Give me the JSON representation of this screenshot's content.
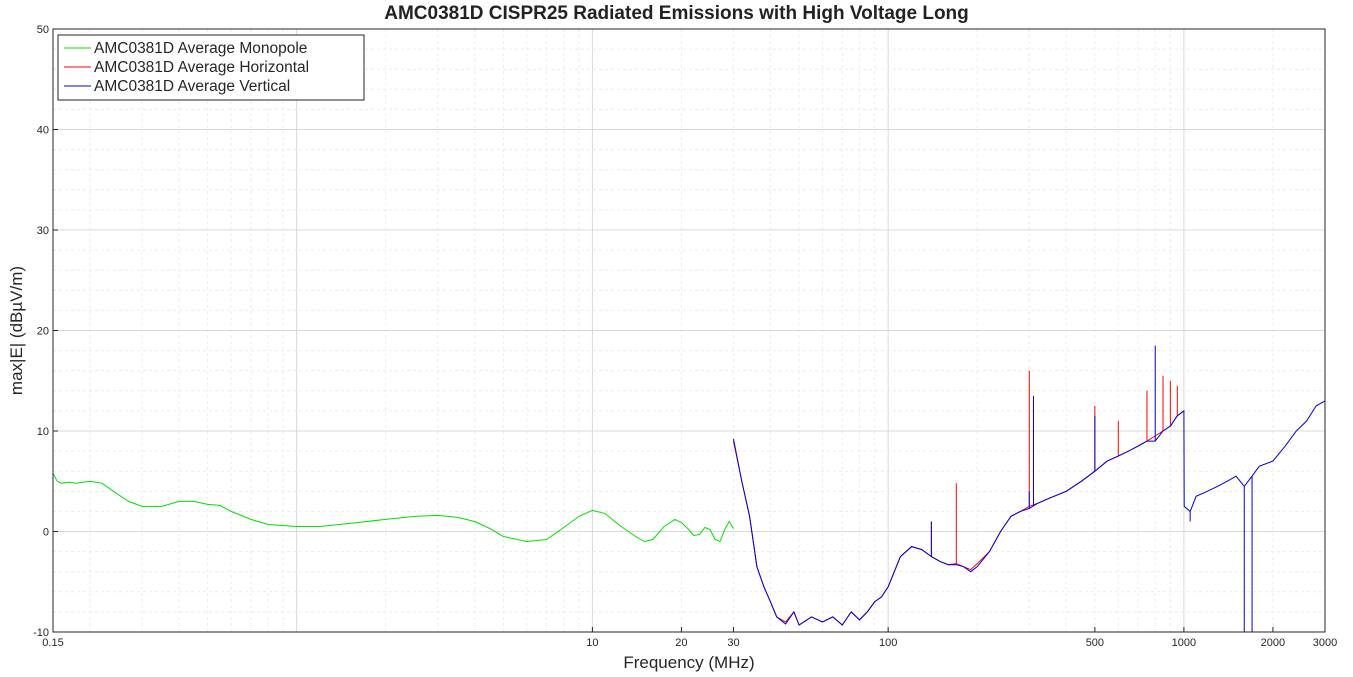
{
  "chart_data": {
    "type": "line",
    "title": "AMC0381D CISPR25 Radiated Emissions with High Voltage Long",
    "xlabel": "Frequency (MHz)",
    "ylabel": "max|E| (dBµV/m)",
    "xscale": "log",
    "xlim": [
      0.15,
      3000
    ],
    "ylim": [
      -10,
      50
    ],
    "xticks": [
      0.15,
      10,
      20,
      30,
      100,
      500,
      1000,
      2000,
      3000
    ],
    "xtick_labels": [
      "0.15",
      "10",
      "20",
      "30",
      "100",
      "500",
      "1000",
      "2000",
      "3000"
    ],
    "yticks": [
      -10,
      0,
      10,
      20,
      30,
      40,
      50
    ],
    "ytick_labels": [
      "-10",
      "0",
      "10",
      "20",
      "30",
      "40",
      "50"
    ],
    "grid": true,
    "minor_grid": true,
    "legend_position": "top-left",
    "series": [
      {
        "name": "AMC0381D Average Monopole",
        "color": "#00e000",
        "x": [
          0.15,
          0.155,
          0.16,
          0.17,
          0.18,
          0.2,
          0.22,
          0.24,
          0.27,
          0.3,
          0.35,
          0.4,
          0.45,
          0.5,
          0.55,
          0.6,
          0.7,
          0.8,
          1.0,
          1.2,
          1.5,
          2.0,
          2.5,
          3.0,
          3.5,
          4.0,
          4.5,
          5.0,
          6.0,
          7.0,
          8.0,
          9.0,
          10.0,
          11.0,
          12.5,
          14.0,
          15.0,
          16.0,
          17.5,
          19.0,
          20.0,
          21.0,
          22.0,
          23.0,
          24.0,
          25.0,
          26.0,
          27.0,
          28.0,
          29.0,
          30.0
        ],
        "values": [
          5.8,
          5.0,
          4.8,
          4.9,
          4.8,
          5.0,
          4.8,
          4.0,
          3.0,
          2.5,
          2.5,
          3.0,
          3.0,
          2.7,
          2.6,
          2.0,
          1.2,
          0.7,
          0.5,
          0.5,
          0.8,
          1.2,
          1.5,
          1.6,
          1.4,
          1.0,
          0.3,
          -0.5,
          -1.0,
          -0.8,
          0.4,
          1.5,
          2.1,
          1.8,
          0.5,
          -0.5,
          -1.0,
          -0.8,
          0.5,
          1.2,
          0.9,
          0.3,
          -0.4,
          -0.3,
          0.4,
          0.2,
          -0.8,
          -1.0,
          0.2,
          1.0,
          0.3
        ]
      },
      {
        "name": "AMC0381D Average Horizontal",
        "color": "#ff0000",
        "x": [
          30,
          32,
          34,
          36,
          38,
          40,
          42,
          45,
          48,
          50,
          55,
          60,
          65,
          70,
          75,
          80,
          85,
          90,
          95,
          100,
          110,
          120,
          130,
          140,
          150,
          160,
          170,
          180,
          190,
          200,
          220,
          240,
          260,
          280,
          300,
          320,
          350,
          400,
          450,
          500,
          550,
          600,
          650,
          700,
          750,
          800,
          850,
          900,
          950,
          1000
        ],
        "values": [
          9.0,
          5.0,
          1.5,
          -3.5,
          -5.5,
          -7.0,
          -8.5,
          -9.0,
          -8.0,
          -9.3,
          -8.5,
          -9.0,
          -8.5,
          -9.3,
          -8.0,
          -8.8,
          -8.0,
          -7.0,
          -6.5,
          -5.5,
          -2.5,
          -1.5,
          -1.8,
          -2.5,
          -3.0,
          -3.3,
          -3.2,
          -3.5,
          -3.8,
          -3.2,
          -2.0,
          0.0,
          1.5,
          2.0,
          2.5,
          2.8,
          3.3,
          4.0,
          5.0,
          6.0,
          7.0,
          7.5,
          8.0,
          8.5,
          9.0,
          9.5,
          10.0,
          10.5,
          11.5,
          12.0
        ],
        "spikes": [
          {
            "x": 140,
            "y": 1.0
          },
          {
            "x": 170,
            "y": 4.8
          },
          {
            "x": 300,
            "y": 16.0
          },
          {
            "x": 500,
            "y": 12.5
          },
          {
            "x": 600,
            "y": 11.0
          },
          {
            "x": 750,
            "y": 14.0
          },
          {
            "x": 850,
            "y": 15.5
          },
          {
            "x": 900,
            "y": 15.0
          },
          {
            "x": 950,
            "y": 14.5
          }
        ]
      },
      {
        "name": "AMC0381D Average Vertical",
        "color": "#0000dd",
        "x": [
          30,
          32,
          34,
          36,
          38,
          40,
          42,
          45,
          48,
          50,
          55,
          60,
          65,
          70,
          75,
          80,
          85,
          90,
          95,
          100,
          110,
          120,
          130,
          140,
          150,
          160,
          170,
          180,
          190,
          200,
          220,
          240,
          260,
          280,
          300,
          320,
          350,
          400,
          450,
          500,
          550,
          600,
          650,
          700,
          750,
          800,
          850,
          900,
          950,
          1000,
          1002,
          1050,
          1100,
          1200,
          1300,
          1400,
          1500,
          1600,
          1700,
          1800,
          2000,
          2200,
          2400,
          2600,
          2800,
          3000
        ],
        "values": [
          9.2,
          5.0,
          1.5,
          -3.5,
          -5.5,
          -7.0,
          -8.5,
          -9.2,
          -8.0,
          -9.3,
          -8.5,
          -9.0,
          -8.5,
          -9.3,
          -8.0,
          -8.8,
          -8.0,
          -7.0,
          -6.5,
          -5.5,
          -2.5,
          -1.5,
          -1.8,
          -2.5,
          -3.0,
          -3.3,
          -3.3,
          -3.5,
          -4.0,
          -3.5,
          -2.0,
          0.0,
          1.5,
          2.0,
          2.3,
          2.8,
          3.3,
          4.0,
          5.0,
          6.0,
          7.0,
          7.5,
          8.0,
          8.5,
          9.0,
          9.0,
          10.0,
          10.5,
          11.5,
          12.0,
          2.5,
          2.0,
          3.5,
          4.0,
          4.5,
          5.0,
          5.5,
          4.5,
          5.5,
          6.5,
          7.0,
          8.5,
          10.0,
          11.0,
          12.5,
          13.0
        ],
        "spikes": [
          {
            "x": 140,
            "y": 1.0
          },
          {
            "x": 300,
            "y": 4.0
          },
          {
            "x": 310,
            "y": 13.5
          },
          {
            "x": 500,
            "y": 11.5
          },
          {
            "x": 800,
            "y": 18.5
          },
          {
            "x": 1050,
            "y": 1.0
          },
          {
            "x": 1600,
            "y": -10
          },
          {
            "x": 1700,
            "y": -10
          }
        ]
      }
    ]
  }
}
